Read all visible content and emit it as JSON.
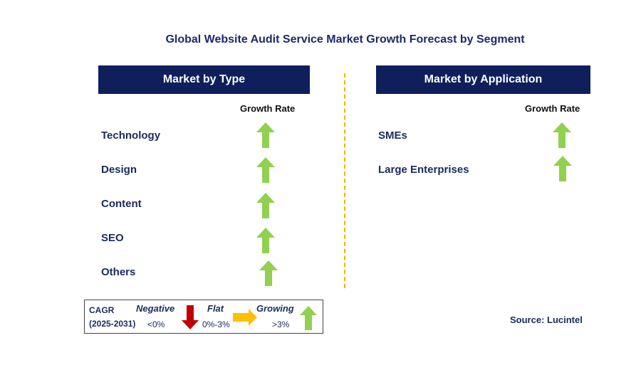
{
  "title": "Global Website Audit Service Market Growth Forecast by Segment",
  "left_panel": {
    "header": "Market by Type",
    "growth_rate_label": "Growth Rate",
    "rows": [
      {
        "label": "Technology",
        "trend": "growing"
      },
      {
        "label": "Design",
        "trend": "growing"
      },
      {
        "label": "Content",
        "trend": "growing"
      },
      {
        "label": "SEO",
        "trend": "growing"
      },
      {
        "label": "Others",
        "trend": "growing"
      }
    ]
  },
  "right_panel": {
    "header": "Market by Application",
    "growth_rate_label": "Growth Rate",
    "rows": [
      {
        "label": "SMEs",
        "trend": "growing"
      },
      {
        "label": "Large Enterprises",
        "trend": "growing"
      }
    ]
  },
  "legend": {
    "cagr": "CAGR",
    "period": "(2025-2031)",
    "negative": {
      "label": "Negative",
      "range": "<0%",
      "icon": "red-down-arrow-icon",
      "color": "#c00000"
    },
    "flat": {
      "label": "Flat",
      "range": "0%-3%",
      "icon": "orange-right-arrow-icon",
      "color": "#ffc000"
    },
    "growing": {
      "label": "Growing",
      "range": ">3%",
      "icon": "green-up-arrow-icon",
      "color": "#92d050"
    }
  },
  "source": "Source: Lucintel",
  "colors": {
    "header_bg": "#0e1f5b",
    "divider": "#f4b400",
    "growing": "#92d050"
  }
}
